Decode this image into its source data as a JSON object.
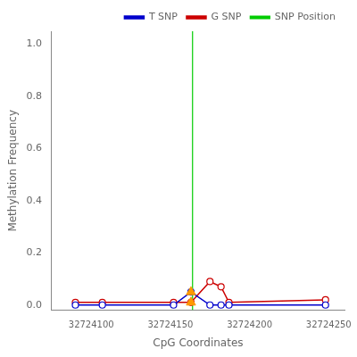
{
  "chart_data": {
    "type": "line",
    "xlabel": "CpG Coordinates",
    "ylabel": "Methylation Frequency",
    "xlim": [
      32724075,
      32724260
    ],
    "ylim": [
      -0.02,
      1.05
    ],
    "xticks": [
      32724100,
      32724150,
      32724200,
      32724250
    ],
    "yticks": [
      {
        "value": 0.0,
        "label": "0.0"
      },
      0.2,
      0.4,
      0.6,
      0.8,
      {
        "value": 1.0,
        "label": "1.0"
      }
    ],
    "grid": false,
    "legend": "upper right",
    "series": [
      {
        "name": "T SNP",
        "color": "#0000cc",
        "marker": "circle",
        "line_style": "solid",
        "x": [
          32724090,
          32724107,
          32724152,
          32724163,
          32724175,
          32724182,
          32724187,
          32724248
        ],
        "values": [
          0.0,
          0.0,
          0.0,
          0.05,
          0.0,
          0.0,
          0.0,
          0.0
        ]
      },
      {
        "name": "G SNP",
        "color": "#cc0000",
        "marker": "circle",
        "line_style": "solid",
        "x": [
          32724090,
          32724107,
          32724152,
          32724163,
          32724175,
          32724182,
          32724187,
          32724248
        ],
        "values": [
          0.01,
          0.01,
          0.01,
          0.01,
          0.09,
          0.07,
          0.01,
          0.02
        ]
      }
    ],
    "snp_line": {
      "name": "SNP Position",
      "x": 32724164,
      "color": "#00cc00"
    },
    "triangles": {
      "x": [
        32724163,
        32724163
      ],
      "values": [
        0.05,
        0.01
      ],
      "color": "#ff9900",
      "marker": "triangle"
    }
  }
}
